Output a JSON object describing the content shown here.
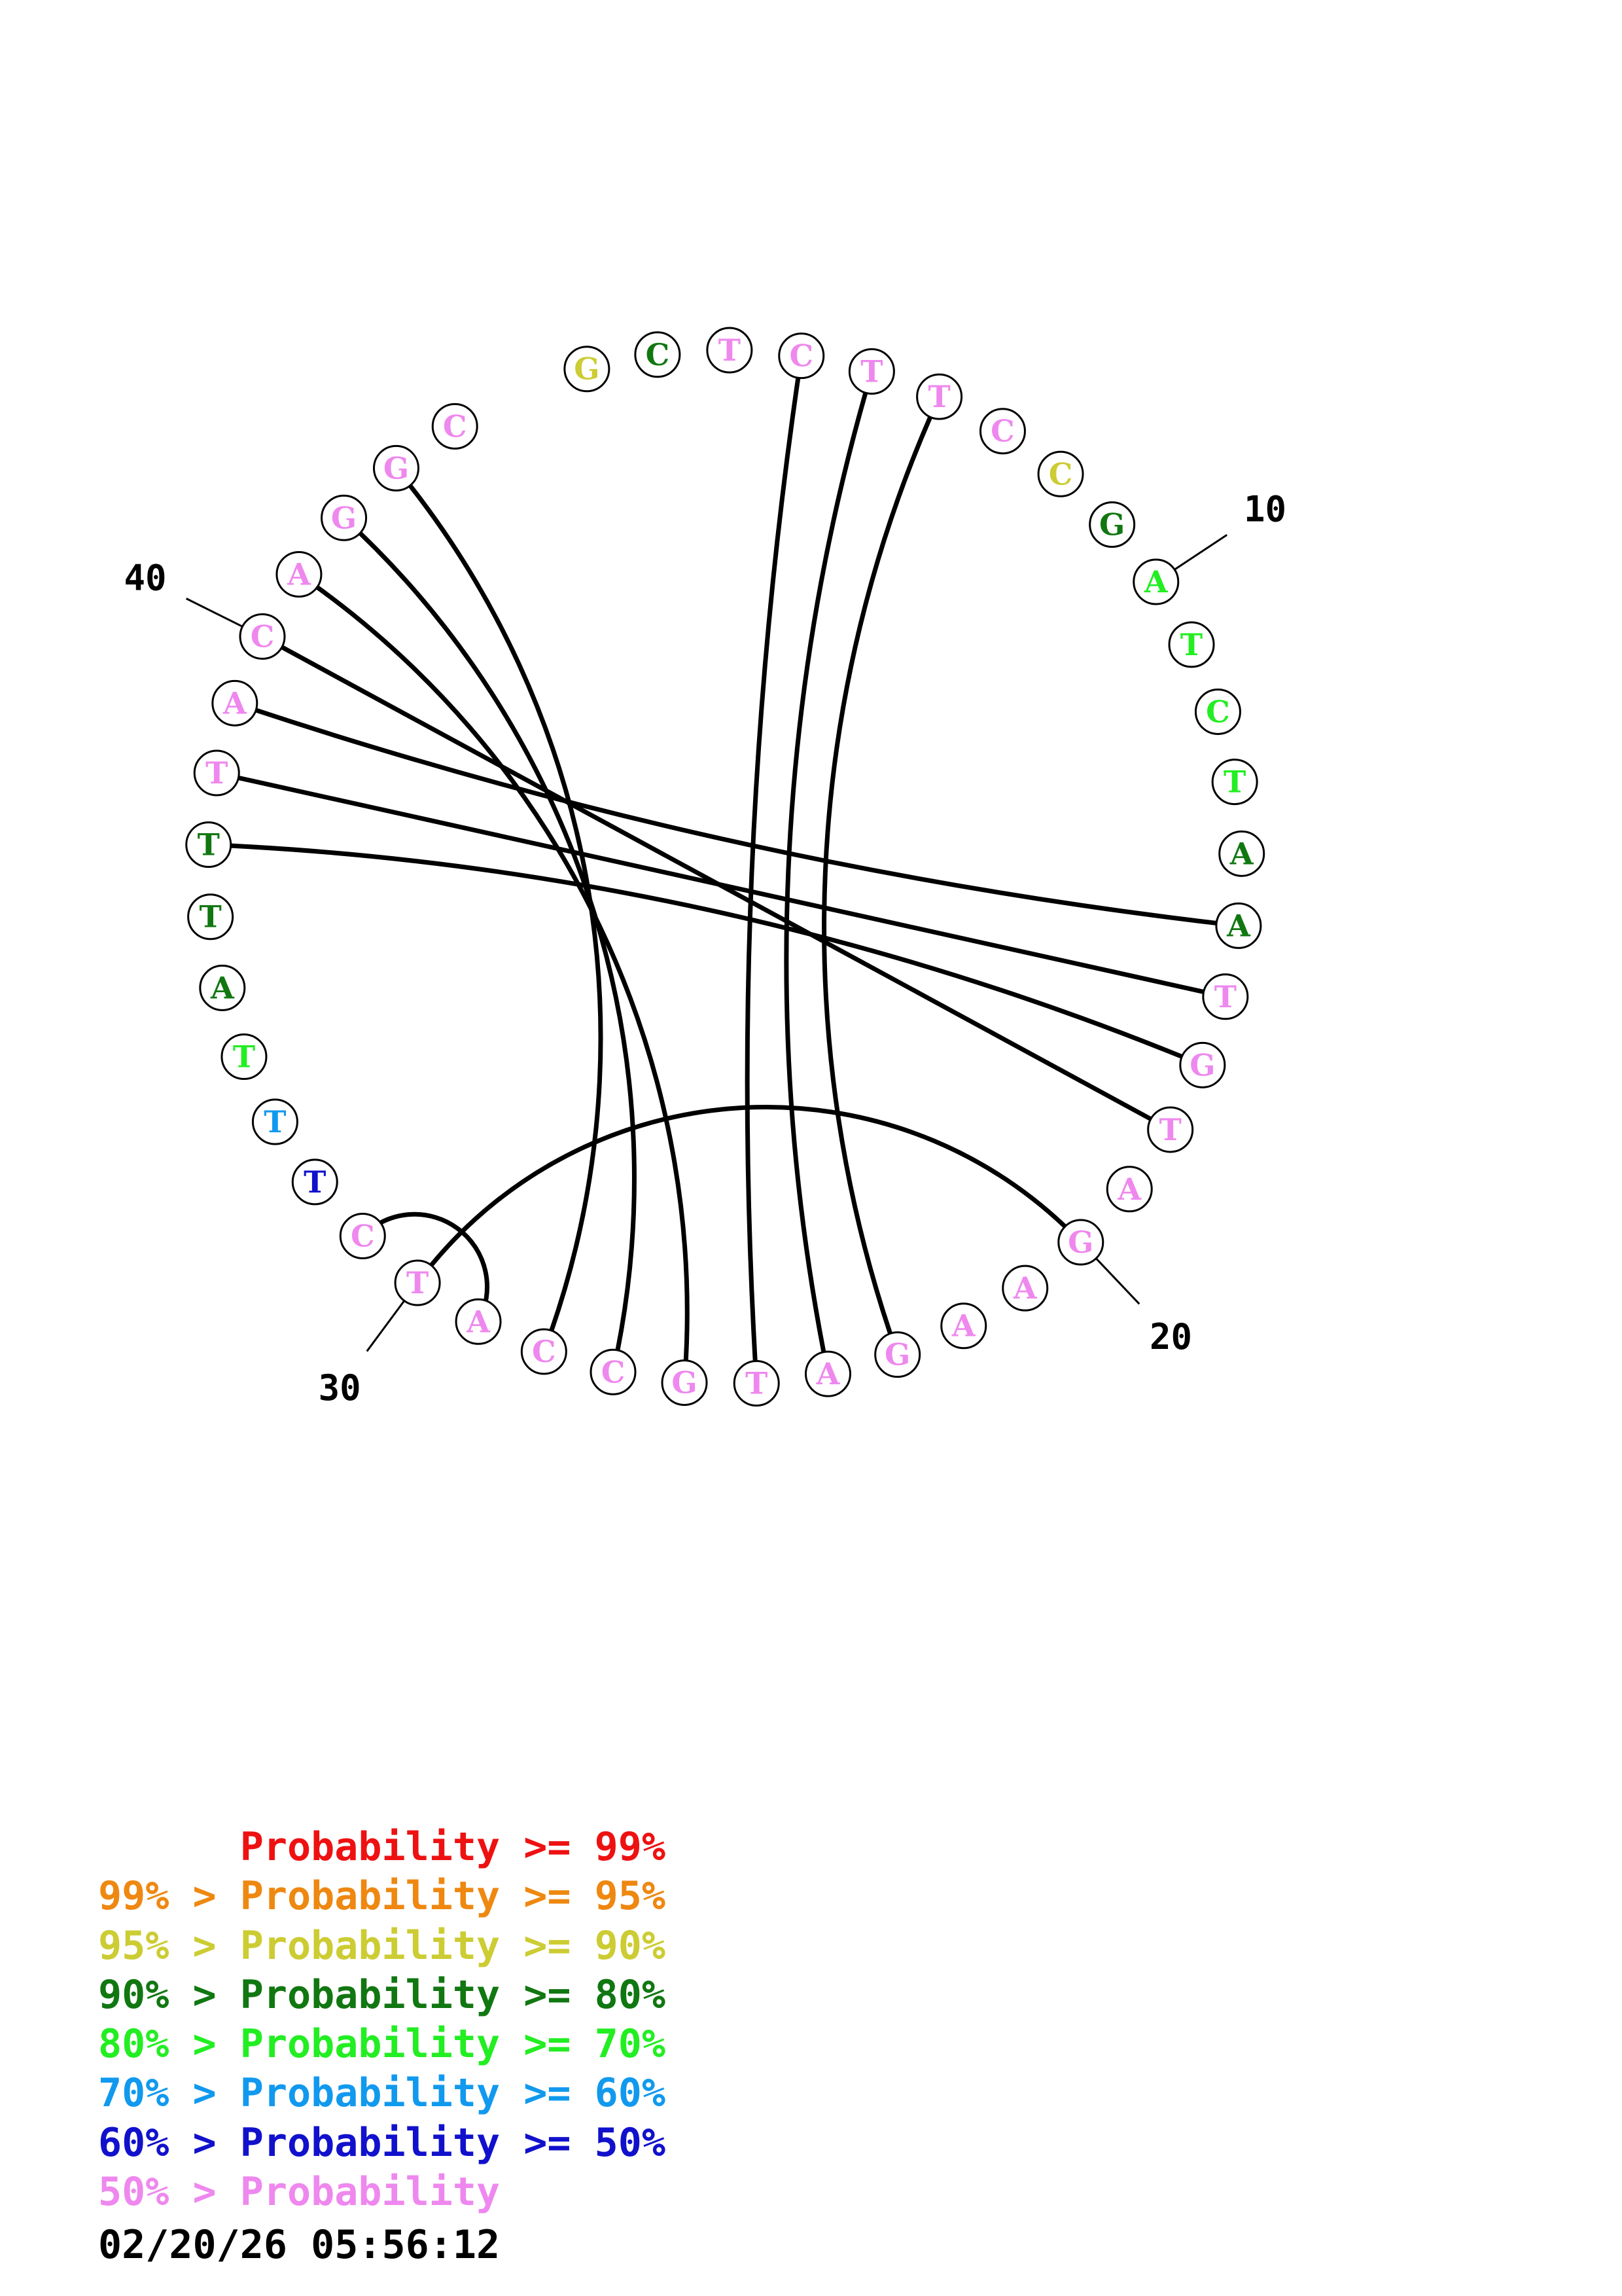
{
  "sequence": [
    {
      "base": "G",
      "color": "#cccc33"
    },
    {
      "base": "C",
      "color": "#117711"
    },
    {
      "base": "T",
      "color": "#ee88ee"
    },
    {
      "base": "C",
      "color": "#ee88ee"
    },
    {
      "base": "T",
      "color": "#ee88ee"
    },
    {
      "base": "T",
      "color": "#ee88ee"
    },
    {
      "base": "C",
      "color": "#ee88ee"
    },
    {
      "base": "C",
      "color": "#cccc33"
    },
    {
      "base": "G",
      "color": "#117711"
    },
    {
      "base": "A",
      "color": "#22ee22"
    },
    {
      "base": "T",
      "color": "#22ee22"
    },
    {
      "base": "C",
      "color": "#22ee22"
    },
    {
      "base": "T",
      "color": "#22ee22"
    },
    {
      "base": "A",
      "color": "#117711"
    },
    {
      "base": "A",
      "color": "#117711"
    },
    {
      "base": "T",
      "color": "#ee88ee"
    },
    {
      "base": "G",
      "color": "#ee88ee"
    },
    {
      "base": "T",
      "color": "#ee88ee"
    },
    {
      "base": "A",
      "color": "#ee88ee"
    },
    {
      "base": "G",
      "color": "#ee88ee"
    },
    {
      "base": "A",
      "color": "#ee88ee"
    },
    {
      "base": "A",
      "color": "#ee88ee"
    },
    {
      "base": "G",
      "color": "#ee88ee"
    },
    {
      "base": "A",
      "color": "#ee88ee"
    },
    {
      "base": "T",
      "color": "#ee88ee"
    },
    {
      "base": "G",
      "color": "#ee88ee"
    },
    {
      "base": "C",
      "color": "#ee88ee"
    },
    {
      "base": "C",
      "color": "#ee88ee"
    },
    {
      "base": "A",
      "color": "#ee88ee"
    },
    {
      "base": "T",
      "color": "#ee88ee"
    },
    {
      "base": "C",
      "color": "#ee88ee"
    },
    {
      "base": "T",
      "color": "#1111cc"
    },
    {
      "base": "T",
      "color": "#1199ee"
    },
    {
      "base": "T",
      "color": "#22ee22"
    },
    {
      "base": "A",
      "color": "#117711"
    },
    {
      "base": "T",
      "color": "#117711"
    },
    {
      "base": "T",
      "color": "#117711"
    },
    {
      "base": "T",
      "color": "#ee88ee"
    },
    {
      "base": "A",
      "color": "#ee88ee"
    },
    {
      "base": "C",
      "color": "#ee88ee"
    },
    {
      "base": "A",
      "color": "#ee88ee"
    },
    {
      "base": "G",
      "color": "#ee88ee"
    },
    {
      "base": "G",
      "color": "#ee88ee"
    },
    {
      "base": "C",
      "color": "#ee88ee"
    }
  ],
  "pairs": [
    [
      3,
      24
    ],
    [
      4,
      23
    ],
    [
      5,
      22
    ],
    [
      14,
      38
    ],
    [
      15,
      37
    ],
    [
      16,
      36
    ],
    [
      17,
      39
    ],
    [
      19,
      29
    ],
    [
      25,
      40
    ],
    [
      26,
      41
    ],
    [
      27,
      42
    ],
    [
      28,
      30
    ]
  ],
  "position_labels": [
    {
      "index": 9,
      "text": "10"
    },
    {
      "index": 19,
      "text": "20"
    },
    {
      "index": 29,
      "text": "30"
    },
    {
      "index": 39,
      "text": "40"
    }
  ],
  "legend": [
    {
      "prefix": "",
      "prefix_color": "#ee1111",
      "label": "Probability >= 99%",
      "label_color": "#ee1111"
    },
    {
      "prefix": "99% > ",
      "prefix_color": "#ee8811",
      "label": "Probability >= 95%",
      "label_color": "#ee8811"
    },
    {
      "prefix": "95% > ",
      "prefix_color": "#cccc33",
      "label": "Probability >= 90%",
      "label_color": "#cccc33"
    },
    {
      "prefix": "90% > ",
      "prefix_color": "#117711",
      "label": "Probability >= 80%",
      "label_color": "#117711"
    },
    {
      "prefix": "80% > ",
      "prefix_color": "#22ee22",
      "label": "Probability >= 70%",
      "label_color": "#22ee22"
    },
    {
      "prefix": "70% > ",
      "prefix_color": "#1199ee",
      "label": "Probability >= 60%",
      "label_color": "#1199ee"
    },
    {
      "prefix": "60% > ",
      "prefix_color": "#1111cc",
      "label": "Probability >= 50%",
      "label_color": "#1111cc"
    },
    {
      "prefix": "50% > ",
      "prefix_color": "#ee88ee",
      "label": "Probability",
      "label_color": "#ee88ee"
    }
  ],
  "timestamp": "02/20/26 05:56:12"
}
